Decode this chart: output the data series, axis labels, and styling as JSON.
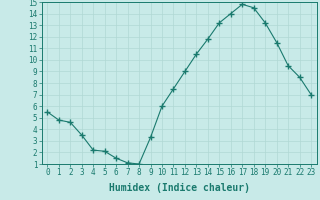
{
  "x": [
    0,
    1,
    2,
    3,
    4,
    5,
    6,
    7,
    8,
    9,
    10,
    11,
    12,
    13,
    14,
    15,
    16,
    17,
    18,
    19,
    20,
    21,
    22,
    23
  ],
  "y": [
    5.5,
    4.8,
    4.6,
    3.5,
    2.2,
    2.1,
    1.5,
    1.1,
    1.0,
    3.3,
    6.0,
    7.5,
    9.0,
    10.5,
    11.8,
    13.2,
    14.0,
    14.8,
    14.5,
    13.2,
    11.5,
    9.5,
    8.5,
    7.0
  ],
  "line_color": "#1a7a6e",
  "marker": "+",
  "marker_size": 4,
  "bg_color": "#c8eae8",
  "grid_color": "#b0d8d4",
  "xlabel": "Humidex (Indice chaleur)",
  "xlim": [
    -0.5,
    23.5
  ],
  "ylim": [
    1,
    15
  ],
  "xticks": [
    0,
    1,
    2,
    3,
    4,
    5,
    6,
    7,
    8,
    9,
    10,
    11,
    12,
    13,
    14,
    15,
    16,
    17,
    18,
    19,
    20,
    21,
    22,
    23
  ],
  "yticks": [
    1,
    2,
    3,
    4,
    5,
    6,
    7,
    8,
    9,
    10,
    11,
    12,
    13,
    14,
    15
  ],
  "tick_color": "#1a7a6e",
  "label_fontsize": 7,
  "tick_fontsize": 5.5
}
